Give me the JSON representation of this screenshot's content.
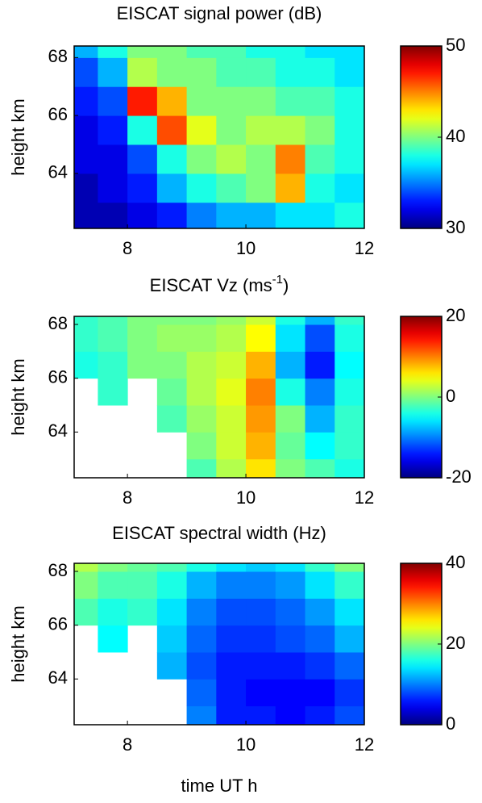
{
  "chart_data": [
    {
      "type": "heatmap",
      "title": "EISCAT signal power (dB)",
      "ylabel": "height km",
      "x": [
        7.25,
        7.75,
        8.25,
        8.75,
        9.25,
        9.75,
        10.25,
        10.75,
        11.25,
        11.75
      ],
      "y": [
        62.5,
        63.5,
        64.5,
        65.5,
        66.5,
        67.5,
        68.5
      ],
      "z": [
        [
          31,
          31,
          32,
          33,
          35,
          36,
          36,
          37,
          37,
          38
        ],
        [
          31,
          32,
          33,
          36,
          38,
          39,
          40,
          44,
          38,
          37
        ],
        [
          32,
          32,
          34,
          38,
          40,
          41,
          40,
          45,
          39,
          38
        ],
        [
          32,
          33,
          38,
          46,
          42,
          40,
          41,
          41,
          40,
          38
        ],
        [
          33,
          34,
          47,
          44,
          40,
          40,
          40,
          39,
          39,
          38
        ],
        [
          34,
          36,
          41,
          40,
          40,
          39,
          39,
          38,
          38,
          37
        ],
        [
          36,
          38,
          40,
          40,
          39,
          39,
          38,
          38,
          37,
          37
        ]
      ],
      "xlim": [
        7.1,
        12
      ],
      "xticks": [
        8,
        10,
        12
      ],
      "ylim": [
        62.1,
        68.4
      ],
      "yticks": [
        64,
        66,
        68
      ],
      "clim": [
        30,
        50
      ],
      "cticks": [
        30,
        40,
        50
      ],
      "colormap": "jet"
    },
    {
      "type": "heatmap",
      "title": "EISCAT Vz (ms",
      "title_superscript": "-1",
      "title_suffix": ")",
      "ylabel": "height km",
      "x": [
        7.25,
        7.75,
        8.25,
        8.75,
        9.25,
        9.75,
        10.25,
        10.75,
        11.25,
        11.75
      ],
      "y": [
        62.5,
        63.5,
        64.5,
        65.5,
        66.5,
        67.5,
        68.5
      ],
      "z": [
        [
          null,
          null,
          null,
          null,
          -2,
          2,
          6,
          0,
          -2,
          -4
        ],
        [
          null,
          null,
          null,
          null,
          0,
          3,
          8,
          -1,
          -5,
          -3
        ],
        [
          null,
          null,
          null,
          -2,
          1,
          3,
          9,
          0,
          -8,
          -3
        ],
        [
          null,
          -3,
          null,
          -1,
          2,
          4,
          10,
          -4,
          -10,
          -4
        ],
        [
          -4,
          -3,
          0,
          0,
          2,
          3,
          8,
          -8,
          -14,
          -5
        ],
        [
          -3,
          -2,
          0,
          1,
          1,
          2,
          5,
          -6,
          -12,
          -4
        ],
        [
          -3,
          -2,
          0,
          0,
          0,
          1,
          3,
          -4,
          -8,
          -3
        ]
      ],
      "xlim": [
        7.1,
        12
      ],
      "xticks": [
        8,
        10,
        12
      ],
      "ylim": [
        62.3,
        68.3
      ],
      "yticks": [
        64,
        66,
        68
      ],
      "clim": [
        -20,
        20
      ],
      "cticks": [
        -20,
        0,
        20
      ],
      "colormap": "jet"
    },
    {
      "type": "heatmap",
      "title": "EISCAT spectral width (Hz)",
      "ylabel": "height km",
      "xlabel": "time UT h",
      "x": [
        7.25,
        7.75,
        8.25,
        8.75,
        9.25,
        9.75,
        10.25,
        10.75,
        11.25,
        11.75
      ],
      "y": [
        62.5,
        63.5,
        64.5,
        65.5,
        66.5,
        67.5,
        68.5
      ],
      "z": [
        [
          null,
          null,
          null,
          null,
          10,
          6,
          6,
          5,
          6,
          8
        ],
        [
          null,
          null,
          null,
          null,
          9,
          6,
          5,
          5,
          5,
          7
        ],
        [
          null,
          null,
          null,
          12,
          8,
          6,
          6,
          6,
          7,
          9
        ],
        [
          null,
          15,
          null,
          13,
          9,
          7,
          7,
          8,
          9,
          12
        ],
        [
          18,
          16,
          17,
          14,
          10,
          8,
          8,
          9,
          11,
          14
        ],
        [
          20,
          18,
          18,
          16,
          12,
          10,
          10,
          11,
          14,
          17
        ],
        [
          22,
          20,
          19,
          18,
          16,
          14,
          13,
          14,
          17,
          20
        ]
      ],
      "xlim": [
        7.1,
        12
      ],
      "xticks": [
        8,
        10,
        12
      ],
      "ylim": [
        62.3,
        68.3
      ],
      "yticks": [
        64,
        66,
        68
      ],
      "clim": [
        0,
        40
      ],
      "cticks": [
        0,
        20,
        40
      ],
      "colormap": "jet"
    }
  ]
}
